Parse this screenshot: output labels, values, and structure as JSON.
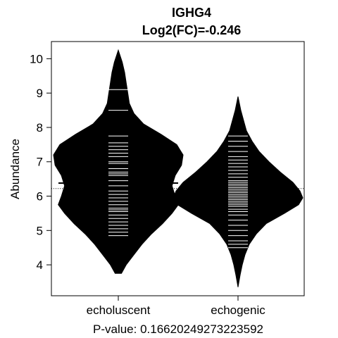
{
  "chart_data": {
    "type": "beanplot",
    "title": "IGHG4",
    "subtitle": "Log2(FC)=-0.246",
    "ylabel": "Abundance",
    "footer": "P-value: 0.16620249273223592",
    "ylim": [
      3.1,
      10.5
    ],
    "yticks": [
      4,
      5,
      6,
      7,
      8,
      9,
      10
    ],
    "overall_mean": 6.22,
    "categories": [
      "echoluscent",
      "echogenic"
    ],
    "beans": [
      {
        "name": "echoluscent",
        "mean": 6.38,
        "range": [
          3.75,
          10.25
        ],
        "density": [
          [
            3.75,
            0.02
          ],
          [
            4.0,
            0.05
          ],
          [
            4.3,
            0.1
          ],
          [
            4.6,
            0.15
          ],
          [
            4.9,
            0.21
          ],
          [
            5.2,
            0.28
          ],
          [
            5.5,
            0.34
          ],
          [
            5.75,
            0.38
          ],
          [
            6.0,
            0.36
          ],
          [
            6.3,
            0.34
          ],
          [
            6.6,
            0.36
          ],
          [
            6.9,
            0.4
          ],
          [
            7.2,
            0.41
          ],
          [
            7.5,
            0.37
          ],
          [
            7.8,
            0.27
          ],
          [
            8.1,
            0.16
          ],
          [
            8.4,
            0.1
          ],
          [
            8.7,
            0.07
          ],
          [
            9.0,
            0.06
          ],
          [
            9.3,
            0.05
          ],
          [
            9.6,
            0.04
          ],
          [
            9.9,
            0.025
          ],
          [
            10.25,
            0.0
          ]
        ],
        "points": [
          4.85,
          4.95,
          5.05,
          5.15,
          5.25,
          5.35,
          5.45,
          5.55,
          5.6,
          5.65,
          5.75,
          5.85,
          5.95,
          6.05,
          6.15,
          6.3,
          6.45,
          6.6,
          6.65,
          6.7,
          6.8,
          6.95,
          7.0,
          7.15,
          7.25,
          7.35,
          7.45,
          7.55,
          7.75,
          8.5,
          9.1
        ]
      },
      {
        "name": "echogenic",
        "mean": 6.12,
        "range": [
          3.35,
          8.9
        ],
        "density": [
          [
            3.35,
            0.0
          ],
          [
            3.7,
            0.015
          ],
          [
            4.0,
            0.03
          ],
          [
            4.3,
            0.05
          ],
          [
            4.6,
            0.08
          ],
          [
            4.9,
            0.13
          ],
          [
            5.2,
            0.2
          ],
          [
            5.5,
            0.33
          ],
          [
            5.75,
            0.43
          ],
          [
            5.95,
            0.46
          ],
          [
            6.15,
            0.44
          ],
          [
            6.4,
            0.39
          ],
          [
            6.7,
            0.3
          ],
          [
            7.0,
            0.22
          ],
          [
            7.3,
            0.15
          ],
          [
            7.6,
            0.1
          ],
          [
            7.9,
            0.06
          ],
          [
            8.2,
            0.04
          ],
          [
            8.5,
            0.02
          ],
          [
            8.9,
            0.0
          ]
        ],
        "points": [
          4.5,
          4.6,
          4.7,
          4.85,
          5.0,
          5.15,
          5.3,
          5.45,
          5.55,
          5.62,
          5.7,
          5.75,
          5.8,
          5.85,
          5.9,
          5.95,
          6.0,
          6.05,
          6.1,
          6.15,
          6.2,
          6.25,
          6.3,
          6.35,
          6.4,
          6.45,
          6.55,
          6.65,
          6.75,
          6.85,
          6.95,
          7.05,
          7.15,
          7.3,
          7.45,
          7.6,
          7.75
        ]
      }
    ],
    "grid": false,
    "legend": "none",
    "colors": {
      "bean_fill": "#000000",
      "point_line": "#ffffff",
      "axis": "#000000",
      "background": "#ffffff"
    }
  }
}
